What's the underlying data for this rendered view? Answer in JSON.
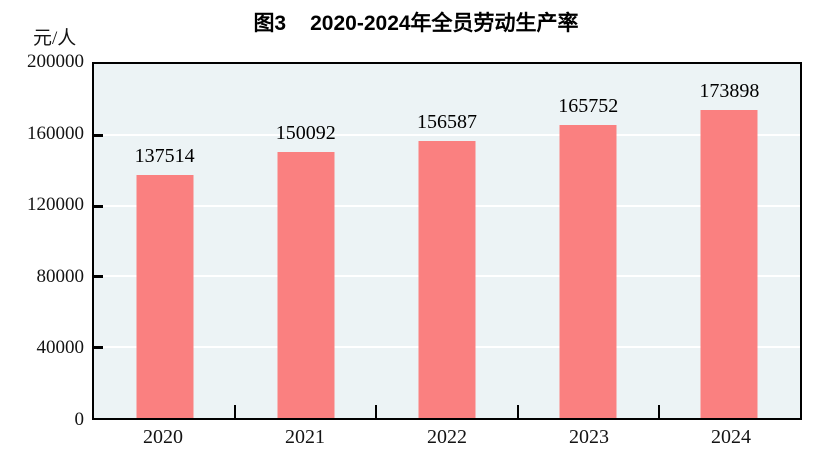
{
  "figure": {
    "title_prefix": "图3",
    "title_main": "2020-2024年全员劳动生产率"
  },
  "axes": {
    "y_unit": "元/人"
  },
  "chart_data": {
    "type": "bar",
    "title": "图3 2020-2024年全员劳动生产率",
    "xlabel": "",
    "ylabel": "元/人",
    "categories": [
      "2020",
      "2021",
      "2022",
      "2023",
      "2024"
    ],
    "values": [
      137514,
      150092,
      156587,
      165752,
      173898
    ],
    "data_labels": [
      "137514",
      "150092",
      "156587",
      "165752",
      "173898"
    ],
    "ylim": [
      0,
      200000
    ],
    "y_ticks": [
      0,
      40000,
      80000,
      120000,
      160000,
      200000
    ],
    "y_tick_labels": [
      "0",
      "40000",
      "80000",
      "120000",
      "160000",
      "200000"
    ],
    "grid": "horizontal-white-on-tinted-background",
    "legend": "none",
    "bar_color": "#FA8080",
    "plot_bg": "#ECF3F5",
    "frame_color": "#000000",
    "gridline_color": "#FFFFFF",
    "text_color": "#141414"
  }
}
